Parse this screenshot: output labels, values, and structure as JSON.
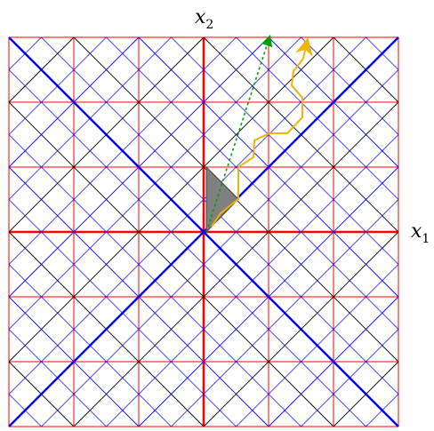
{
  "diagram": {
    "grid_cells": 6,
    "colors": {
      "red_grid": "#ff0000",
      "black_diagonals": "#000000",
      "blue_diagonals": "#0000ff",
      "shaded_region": "#808080",
      "yellow_path": "#f0b400",
      "green_arrow": "#00a000"
    }
  },
  "labels": {
    "x1": {
      "base": "x",
      "sub": "1"
    },
    "x2": {
      "base": "x",
      "sub": "2"
    }
  }
}
